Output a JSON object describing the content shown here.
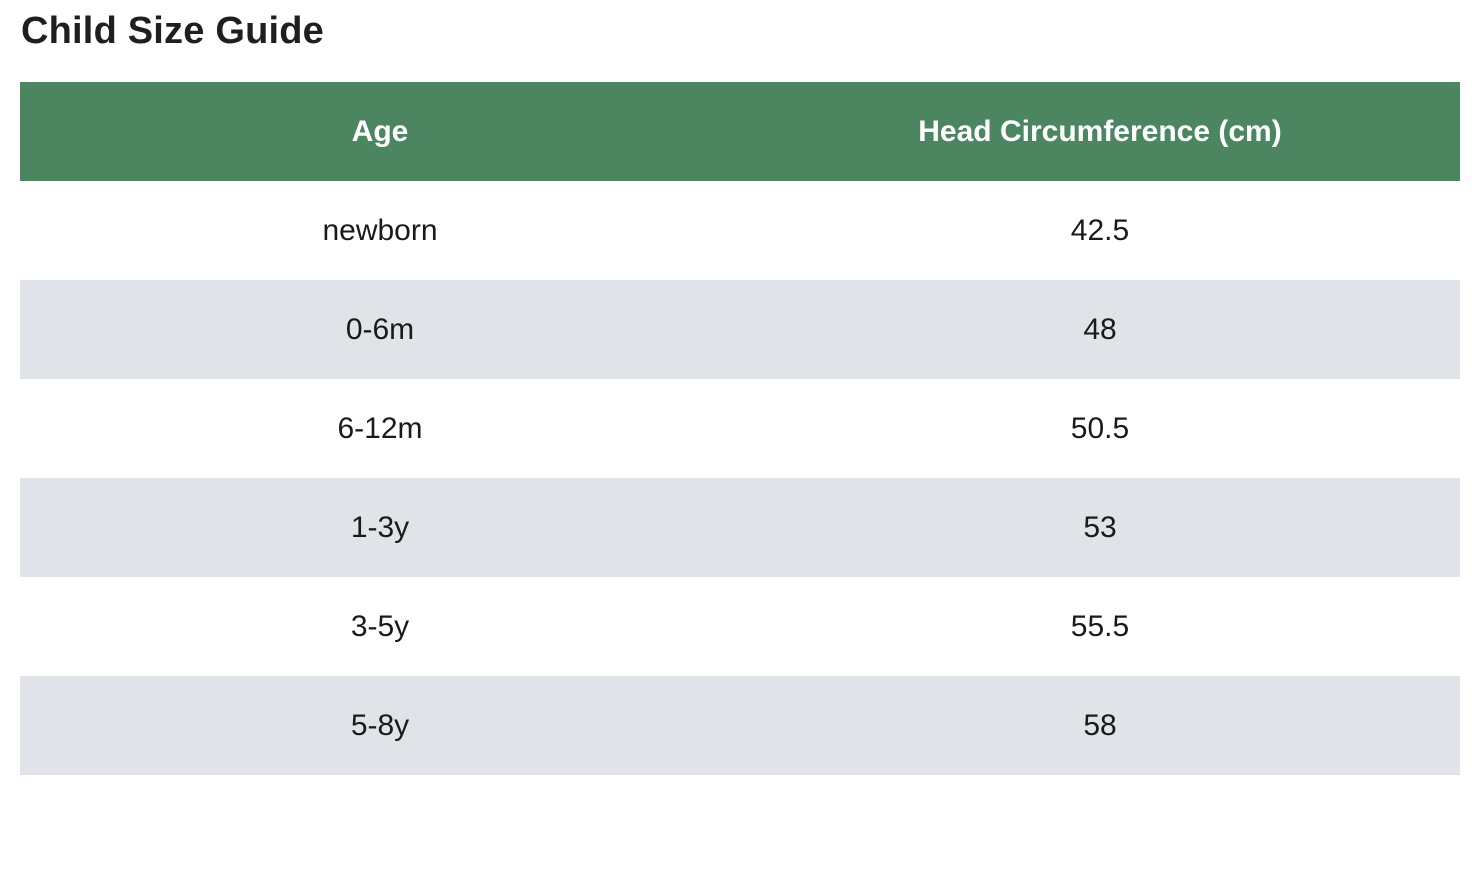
{
  "page": {
    "title": "Child Size Guide"
  },
  "table": {
    "headers": [
      "Age",
      "Head Circumference (cm)"
    ],
    "rows": [
      [
        "newborn",
        "42.5"
      ],
      [
        "0-6m",
        "48"
      ],
      [
        "6-12m",
        "50.5"
      ],
      [
        "1-3y",
        "53"
      ],
      [
        "3-5y",
        "55.5"
      ],
      [
        "5-8y",
        "58"
      ]
    ]
  },
  "colors": {
    "header_background": "#4c8661",
    "header_text": "#ffffff",
    "stripe_row": "#e0e3e7",
    "plain_row": "#ffffff"
  }
}
